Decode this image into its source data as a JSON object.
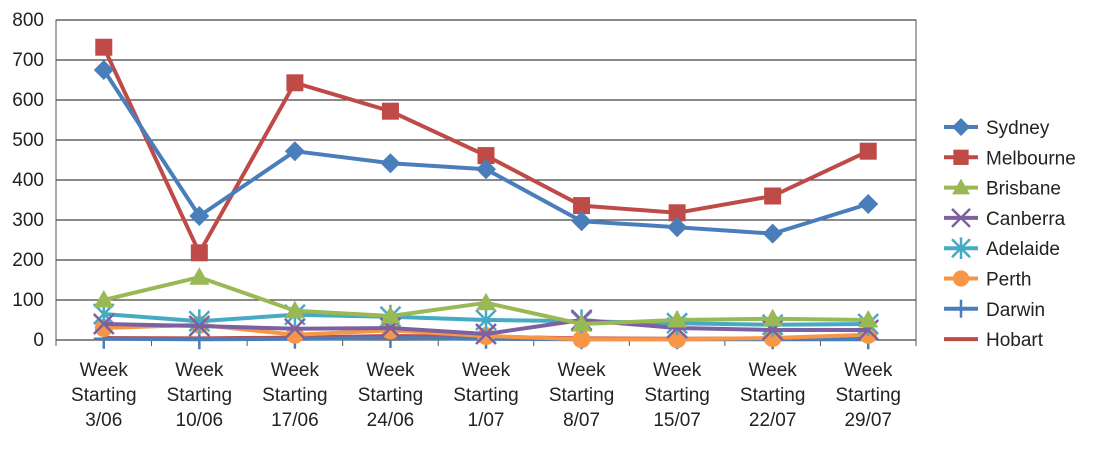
{
  "chart_data": {
    "type": "line",
    "title": "",
    "xlabel": "",
    "ylabel": "",
    "ylim": [
      0,
      800
    ],
    "yticks": [
      0,
      100,
      200,
      300,
      400,
      500,
      600,
      700,
      800
    ],
    "grid": "horizontal",
    "legend": "right",
    "categories": [
      [
        "Week",
        "Starting",
        "3/06"
      ],
      [
        "Week",
        "Starting",
        "10/06"
      ],
      [
        "Week",
        "Starting",
        "17/06"
      ],
      [
        "Week",
        "Starting",
        "24/06"
      ],
      [
        "Week",
        "Starting",
        "1/07"
      ],
      [
        "Week",
        "Starting",
        "8/07"
      ],
      [
        "Week",
        "Starting",
        "15/07"
      ],
      [
        "Week",
        "Starting",
        "22/07"
      ],
      [
        "Week",
        "Starting",
        "29/07"
      ]
    ],
    "series": [
      {
        "name": "Sydney",
        "color": "#4a7ebb",
        "marker": "diamond",
        "values": [
          675,
          310,
          472,
          442,
          427,
          297,
          282,
          266,
          340
        ]
      },
      {
        "name": "Melbourne",
        "color": "#be4b48",
        "marker": "square",
        "values": [
          732,
          218,
          643,
          572,
          461,
          336,
          318,
          360,
          472
        ]
      },
      {
        "name": "Brisbane",
        "color": "#98b954",
        "marker": "triangle",
        "values": [
          100,
          157,
          73,
          60,
          93,
          40,
          50,
          53,
          50
        ]
      },
      {
        "name": "Canberra",
        "color": "#7d60a0",
        "marker": "x",
        "values": [
          40,
          35,
          28,
          30,
          15,
          50,
          30,
          25,
          25
        ]
      },
      {
        "name": "Adelaide",
        "color": "#46aac5",
        "marker": "asterisk",
        "values": [
          65,
          47,
          63,
          58,
          50,
          47,
          42,
          38,
          40
        ]
      },
      {
        "name": "Perth",
        "color": "#f79646",
        "marker": "circle",
        "values": [
          30,
          38,
          13,
          24,
          10,
          2,
          2,
          5,
          13
        ]
      },
      {
        "name": "Darwin",
        "color": "#4a7ebb",
        "marker": "plus",
        "values": [
          3,
          2,
          3,
          5,
          3,
          2,
          2,
          2,
          2
        ]
      },
      {
        "name": "Hobart",
        "color": "#be4b48",
        "marker": "none",
        "values": [
          5,
          4,
          6,
          10,
          8,
          4,
          3,
          4,
          5
        ]
      }
    ]
  }
}
